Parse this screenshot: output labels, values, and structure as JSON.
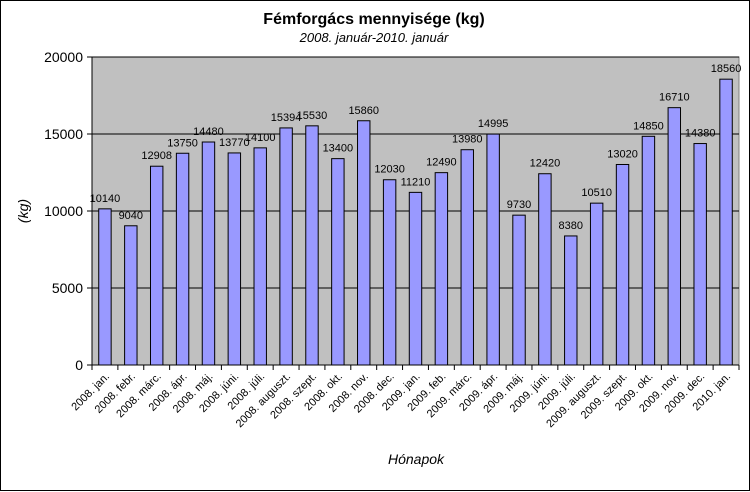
{
  "chart_data": {
    "type": "bar",
    "title": "Fémforgács mennyisége (kg)",
    "subtitle": "2008. január-2010. január",
    "xlabel": "Hónapok",
    "ylabel": "(kg)",
    "ylim": [
      0,
      20000
    ],
    "yticks": [
      0,
      5000,
      10000,
      15000,
      20000
    ],
    "grid": true,
    "legend": "none",
    "colors": {
      "bar_fill": "#9999ff",
      "bar_stroke": "#000000",
      "plot_background": "#c0c0c0",
      "grid": "#000000"
    },
    "categories": [
      "2008. jan.",
      "2008. febr.",
      "2008. márc.",
      "2008. ápr.",
      "2008. máj.",
      "2008. júni.",
      "2008. júli.",
      "2008. auguszt.",
      "2008. szept.",
      "2008. okt.",
      "2008. nov.",
      "2008. dec.",
      "2009. jan.",
      "2009. feb.",
      "2009. márc.",
      "2009. ápr.",
      "2009. máj.",
      "2009. júni.",
      "2009. júli.",
      "2009. auguszt.",
      "2009. szept.",
      "2009. okt.",
      "2009. nov.",
      "2009. dec.",
      "2010. jan."
    ],
    "values": [
      10140,
      9040,
      12908,
      13750,
      14480,
      13770,
      14100,
      15394,
      15530,
      13400,
      15860,
      12030,
      11210,
      12490,
      13980,
      14995,
      9730,
      12420,
      8380,
      10510,
      13020,
      14850,
      16710,
      14380,
      18560
    ]
  }
}
